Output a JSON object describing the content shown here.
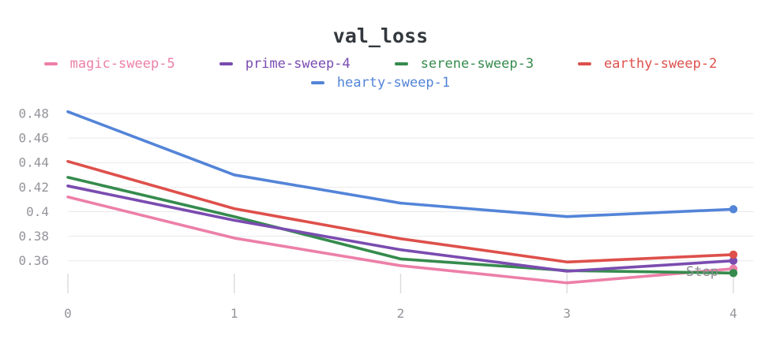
{
  "panel": {
    "title": "val_loss"
  },
  "legend": {
    "rows": [
      [
        "magic-sweep-5",
        "prime-sweep-4",
        "serene-sweep-3",
        "earthy-sweep-2"
      ],
      [
        "hearty-sweep-1"
      ]
    ]
  },
  "chart_data": {
    "type": "line",
    "title": "val_loss",
    "xlabel": "Step",
    "ylabel": "",
    "x": [
      0,
      1,
      2,
      3,
      4
    ],
    "xticks": [
      "0",
      "1",
      "2",
      "3",
      "4"
    ],
    "yticks": [
      {
        "value": 0.48,
        "label": "0.48"
      },
      {
        "value": 0.46,
        "label": "0.46"
      },
      {
        "value": 0.44,
        "label": "0.44"
      },
      {
        "value": 0.42,
        "label": "0.42"
      },
      {
        "value": 0.4,
        "label": "0.4"
      },
      {
        "value": 0.38,
        "label": "0.38"
      },
      {
        "value": 0.36,
        "label": "0.36"
      }
    ],
    "ylim": [
      0.36,
      0.48
    ],
    "xlim": [
      0,
      4
    ],
    "grid": "horizontal",
    "legend_position": "top",
    "series": [
      {
        "name": "magic-sweep-5",
        "color": "#ec7fa8",
        "values": [
          0.412,
          0.3785,
          0.356,
          0.342,
          0.3535
        ]
      },
      {
        "name": "serene-sweep-3",
        "color": "#358b4d",
        "values": [
          0.428,
          0.396,
          0.3615,
          0.352,
          0.35
        ]
      },
      {
        "name": "prime-sweep-4",
        "color": "#7a4cb0",
        "values": [
          0.421,
          0.393,
          0.369,
          0.3515,
          0.36
        ]
      },
      {
        "name": "earthy-sweep-2",
        "color": "#de504b",
        "values": [
          0.441,
          0.4025,
          0.378,
          0.359,
          0.365
        ]
      },
      {
        "name": "hearty-sweep-1",
        "color": "#5384d8",
        "values": [
          0.4815,
          0.43,
          0.407,
          0.396,
          0.402
        ]
      }
    ],
    "endpoint_markers": true
  }
}
